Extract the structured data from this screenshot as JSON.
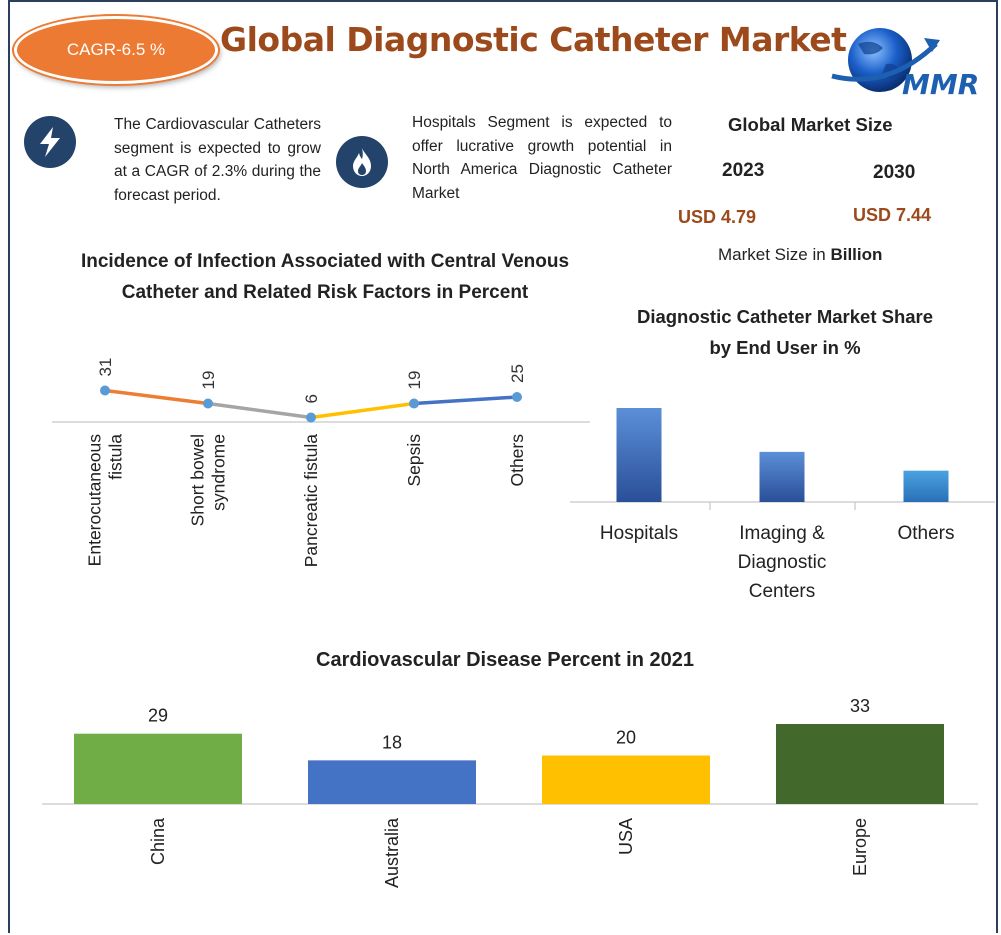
{
  "header": {
    "cagr_badge": "CAGR-6.5 %",
    "title": "Global Diagnostic Catheter Market",
    "logo_text": "MMR"
  },
  "highlights": [
    {
      "icon": "lightning-icon",
      "text": "The Cardiovascular Catheters segment is expected to grow at a CAGR of 2.3% during the forecast period."
    },
    {
      "icon": "flame-icon",
      "text": "Hospitals Segment is expected to offer lucrative growth potential in North America Diagnostic Catheter Market"
    }
  ],
  "market_size": {
    "title": "Global Market Size",
    "year_a": "2023",
    "year_b": "2030",
    "value_a": "USD 4.79",
    "value_b": "USD 7.44",
    "note_prefix": "Market Size in ",
    "note_unit": "Billion"
  },
  "colors": {
    "accent_orange": "#ec7a32",
    "title_brown": "#9c4a1b",
    "navy": "#24436b"
  },
  "chart_data": [
    {
      "type": "line",
      "title_line1": "Incidence of Infection Associated with Central Venous",
      "title_line2": "Catheter and Related Risk Factors in Percent",
      "categories": [
        "Enterocutaneous fistula",
        "Short bowel syndrome",
        "Pancreatic fistula",
        "Sepsis",
        "Others"
      ],
      "category_lines": [
        [
          "Enterocutaneous",
          "fistula"
        ],
        [
          "Short bowel",
          "syndrome"
        ],
        [
          "Pancreatic fistula"
        ],
        [
          "Sepsis"
        ],
        [
          "Others"
        ]
      ],
      "values": [
        31,
        19,
        6,
        19,
        25
      ],
      "segment_colors": [
        "#ed7d31",
        "#a5a5a5",
        "#ffc000",
        "#4472c4"
      ],
      "point_color": "#5b9bd5",
      "ylim": [
        0,
        100
      ],
      "grid": false
    },
    {
      "type": "bar",
      "title_line1": "Diagnostic Catheter Market Share",
      "title_line2": "by End User in %",
      "categories": [
        "Hospitals",
        "Imaging & Diagnostic Centers",
        "Others"
      ],
      "category_lines": [
        [
          "Hospitals"
        ],
        [
          "Imaging &",
          "Diagnostic",
          "Centers"
        ],
        [
          "Others"
        ]
      ],
      "values": [
        45,
        24,
        15
      ],
      "ylim": [
        0,
        50
      ],
      "grid": false
    },
    {
      "type": "bar",
      "title": "Cardiovascular Disease Percent in 2021",
      "categories": [
        "China",
        "Australia",
        "USA",
        "Europe"
      ],
      "values": [
        29,
        18,
        20,
        33
      ],
      "bar_colors": [
        "#70ad47",
        "#4472c4",
        "#ffc000",
        "#43682b"
      ],
      "ylim": [
        0,
        40
      ],
      "grid": false
    }
  ]
}
